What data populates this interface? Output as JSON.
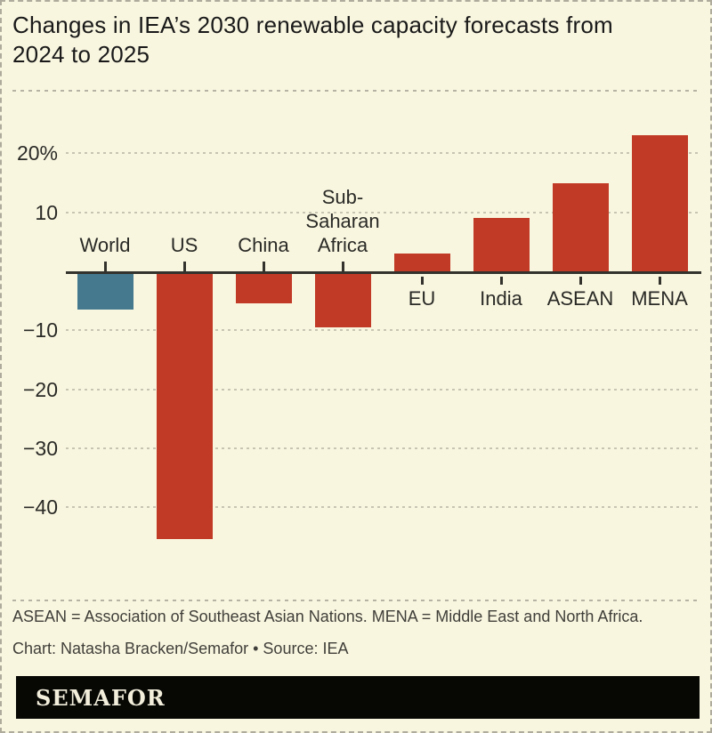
{
  "header": {
    "title_lines": [
      "Changes in IEA’s 2030 renewable capacity forecasts from",
      "2024 to 2025"
    ]
  },
  "chart_data": {
    "type": "bar",
    "title": "Changes in IEA’s 2030 renewable capacity forecasts from 2024 to 2025",
    "unit": "%",
    "ylim": [
      -47,
      25
    ],
    "grid": "horizontal-dashed",
    "legend": "none",
    "y_ticks": [
      {
        "label": "20%",
        "value": 20
      },
      {
        "label": "10",
        "value": 10
      },
      {
        "label": "−10",
        "value": -10
      },
      {
        "label": "−20",
        "value": -20
      },
      {
        "label": "−30",
        "value": -30
      },
      {
        "label": "−40",
        "value": -40
      }
    ],
    "bars": [
      {
        "name": "World",
        "label_lines": [
          "World"
        ],
        "value": -6,
        "color": "#44798e"
      },
      {
        "name": "US",
        "label_lines": [
          "US"
        ],
        "value": -45,
        "color": "#c13a26"
      },
      {
        "name": "China",
        "label_lines": [
          "China"
        ],
        "value": -5,
        "color": "#c13a26"
      },
      {
        "name": "Sub-Saharan Africa",
        "label_lines": [
          "Sub-",
          "Saharan",
          "Africa"
        ],
        "value": -9,
        "color": "#c13a26"
      },
      {
        "name": "EU",
        "label_lines": [
          "EU"
        ],
        "value": 3,
        "color": "#c13a26"
      },
      {
        "name": "India",
        "label_lines": [
          "India"
        ],
        "value": 9,
        "color": "#c13a26"
      },
      {
        "name": "ASEAN",
        "label_lines": [
          "ASEAN"
        ],
        "value": 15,
        "color": "#c13a26"
      },
      {
        "name": "MENA",
        "label_lines": [
          "MENA"
        ],
        "value": 23,
        "color": "#c13a26"
      }
    ]
  },
  "footnotes": {
    "definitions": "ASEAN = Association of Southeast Asian Nations. MENA = Middle East and North Africa.",
    "credit": "Chart: Natasha Bracken/Semafor • Source: IEA"
  },
  "branding": {
    "logo_text": "SEMAFOR"
  },
  "colors": {
    "background": "#f9f6e0",
    "bar_default": "#c13a26",
    "bar_highlight": "#44798e",
    "axis": "#33322c",
    "gridline": "#c7c4b2",
    "title_text": "#191919",
    "label_text": "#2a2a26",
    "footnote_text": "#403f39",
    "logo_bg": "#070704",
    "logo_text": "#f2eedb"
  }
}
